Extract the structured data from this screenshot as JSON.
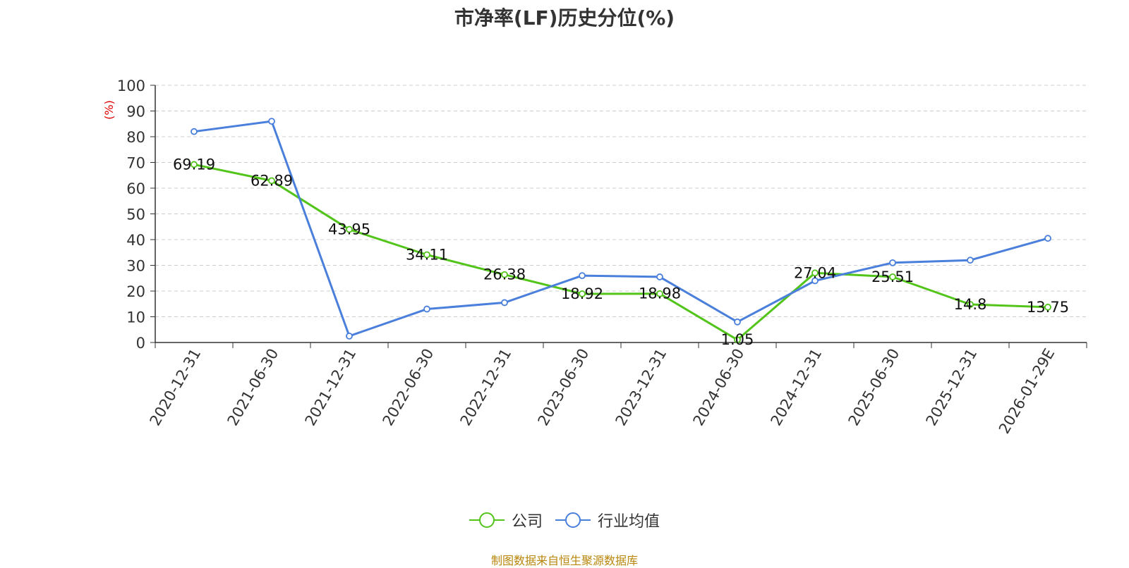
{
  "chart_data": {
    "type": "line",
    "title": "市净率(LF)历史分位(%)",
    "ylabel": "(%)",
    "xlabel": "",
    "ylim": [
      0,
      100
    ],
    "yticks": [
      0,
      10,
      20,
      30,
      40,
      50,
      60,
      70,
      80,
      90,
      100
    ],
    "categories": [
      "2020-12-31",
      "2021-06-30",
      "2021-12-31",
      "2022-06-30",
      "2022-12-31",
      "2023-06-30",
      "2023-12-31",
      "2024-06-30",
      "2024-12-31",
      "2025-06-30",
      "2025-12-31",
      "2026-01-29E"
    ],
    "series": [
      {
        "name": "公司",
        "color": "#52c41a",
        "values": [
          69.19,
          62.89,
          43.95,
          34.11,
          26.38,
          18.92,
          18.98,
          1.05,
          27.04,
          25.51,
          14.8,
          13.75
        ],
        "labels": [
          "69.19",
          "62.89",
          "43.95",
          "34.11",
          "26.38",
          "18.92",
          "18.98",
          "1.05",
          "27.04",
          "25.51",
          "14.8",
          "13.75"
        ]
      },
      {
        "name": "行业均值",
        "color": "#4a7fdb",
        "values": [
          82,
          86,
          2.5,
          13,
          15.5,
          26,
          25.5,
          8,
          24,
          31,
          32,
          40.5
        ]
      }
    ],
    "grid": true,
    "legend_position": "bottom-center"
  },
  "source_note": "制图数据来自恒生聚源数据库"
}
